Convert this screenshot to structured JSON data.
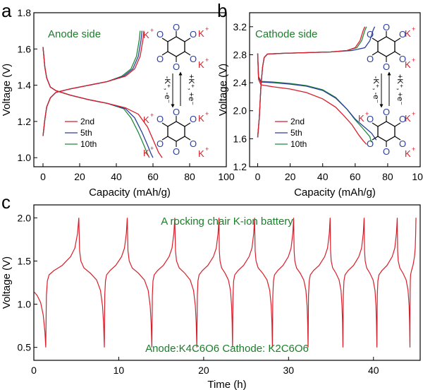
{
  "colors": {
    "red": "#d81e2a",
    "blue": "#2b3f9a",
    "green": "#1f8a3a",
    "annotation": "#1c7d2a",
    "k_label": "#d81e2a",
    "o_label": "#2b3f9a"
  },
  "panels": {
    "a": {
      "letter": "a",
      "annotation": "Anode side",
      "reaction": {
        "top_label": "+K⁺, +e⁻",
        "bottom_label": "-K⁺, -e⁻",
        "atoms": {
          "k": "K",
          "k_plus": "+",
          "oxygen": "O",
          "minus": "-"
        }
      }
    },
    "b": {
      "letter": "b",
      "annotation": "Cathode side",
      "reaction": {
        "top_label": "+K⁺, +e⁻",
        "bottom_label": "-K⁺, -e⁻",
        "atoms": {
          "k": "K",
          "k_plus": "+",
          "oxygen": "O",
          "minus": "-"
        }
      }
    },
    "c": {
      "letter": "c",
      "annotation_top": "A rocking chair K-ion battery",
      "annotation_bottom": "Anode:K4C6O6 Cathode: K2C6O6"
    }
  },
  "chart_data": [
    {
      "type": "line",
      "panel": "a",
      "xlabel": "Capacity (mAh/g)",
      "ylabel": "Voltage (V)",
      "xlim": [
        -5,
        100
      ],
      "ylim": [
        0.95,
        1.8
      ],
      "xticks": [
        "0",
        "20",
        "40",
        "60",
        "80",
        "100"
      ],
      "yticks": [
        "1.0",
        "1.2",
        "1.4",
        "1.6",
        "1.8"
      ],
      "legend_position": "bottom-left",
      "series": [
        {
          "name": "2nd",
          "color": "red",
          "discharge": [
            [
              0,
              1.61
            ],
            [
              1,
              1.5
            ],
            [
              2,
              1.44
            ],
            [
              4,
              1.39
            ],
            [
              7,
              1.37
            ],
            [
              15,
              1.345
            ],
            [
              25,
              1.32
            ],
            [
              35,
              1.3
            ],
            [
              45,
              1.275
            ],
            [
              52,
              1.24
            ],
            [
              57,
              1.17
            ],
            [
              60,
              1.1
            ],
            [
              63,
              1.03
            ],
            [
              65,
              1.0
            ]
          ],
          "charge": [
            [
              0,
              1.12
            ],
            [
              1,
              1.21
            ],
            [
              2,
              1.28
            ],
            [
              4,
              1.33
            ],
            [
              7,
              1.36
            ],
            [
              15,
              1.38
            ],
            [
              25,
              1.4
            ],
            [
              35,
              1.42
            ],
            [
              45,
              1.45
            ],
            [
              50,
              1.49
            ],
            [
              53,
              1.56
            ],
            [
              54.5,
              1.65
            ],
            [
              55,
              1.7
            ]
          ]
        },
        {
          "name": "5th",
          "color": "blue",
          "discharge": [
            [
              0,
              1.61
            ],
            [
              1,
              1.5
            ],
            [
              2,
              1.44
            ],
            [
              4,
              1.39
            ],
            [
              7,
              1.37
            ],
            [
              15,
              1.345
            ],
            [
              25,
              1.32
            ],
            [
              35,
              1.3
            ],
            [
              45,
              1.27
            ],
            [
              50,
              1.22
            ],
            [
              54,
              1.14
            ],
            [
              57,
              1.07
            ],
            [
              59,
              1.02
            ],
            [
              60,
              1.0
            ]
          ],
          "charge": [
            [
              0,
              1.12
            ],
            [
              1,
              1.21
            ],
            [
              2,
              1.28
            ],
            [
              4,
              1.33
            ],
            [
              7,
              1.36
            ],
            [
              15,
              1.38
            ],
            [
              25,
              1.4
            ],
            [
              35,
              1.42
            ],
            [
              44,
              1.45
            ],
            [
              49,
              1.49
            ],
            [
              52,
              1.56
            ],
            [
              53.5,
              1.65
            ],
            [
              54,
              1.7
            ]
          ]
        },
        {
          "name": "10th",
          "color": "green",
          "discharge": [
            [
              0,
              1.61
            ],
            [
              1,
              1.5
            ],
            [
              2,
              1.44
            ],
            [
              4,
              1.39
            ],
            [
              7,
              1.37
            ],
            [
              15,
              1.345
            ],
            [
              25,
              1.32
            ],
            [
              35,
              1.3
            ],
            [
              44,
              1.27
            ],
            [
              48,
              1.22
            ],
            [
              52,
              1.14
            ],
            [
              55,
              1.07
            ],
            [
              57,
              1.02
            ],
            [
              58,
              1.0
            ]
          ],
          "charge": [
            [
              0,
              1.12
            ],
            [
              1,
              1.21
            ],
            [
              2,
              1.28
            ],
            [
              4,
              1.33
            ],
            [
              7,
              1.36
            ],
            [
              15,
              1.38
            ],
            [
              25,
              1.4
            ],
            [
              35,
              1.42
            ],
            [
              43,
              1.45
            ],
            [
              48,
              1.49
            ],
            [
              51,
              1.56
            ],
            [
              52.5,
              1.65
            ],
            [
              53,
              1.7
            ]
          ]
        }
      ]
    },
    {
      "type": "line",
      "panel": "b",
      "xlabel": "Capacity (mAh/g)",
      "ylabel": "Voltage (V)",
      "xlim": [
        -5,
        100
      ],
      "ylim": [
        1.2,
        3.4
      ],
      "xticks": [
        "0",
        "20",
        "40",
        "60",
        "80",
        "100"
      ],
      "yticks": [
        "1.2",
        "1.6",
        "2.0",
        "2.4",
        "2.8",
        "3.2"
      ],
      "legend_position": "bottom-center",
      "series": [
        {
          "name": "2nd",
          "color": "red",
          "discharge": [
            [
              0,
              2.82
            ],
            [
              0.5,
              2.45
            ],
            [
              2,
              2.37
            ],
            [
              10,
              2.34
            ],
            [
              20,
              2.31
            ],
            [
              30,
              2.26
            ],
            [
              40,
              2.17
            ],
            [
              48,
              2.05
            ],
            [
              53,
              1.93
            ],
            [
              58,
              1.8
            ],
            [
              62,
              1.66
            ],
            [
              65,
              1.57
            ],
            [
              67,
              1.52
            ]
          ],
          "charge": [
            [
              0,
              1.62
            ],
            [
              1,
              1.9
            ],
            [
              2,
              2.35
            ],
            [
              3,
              2.62
            ],
            [
              4,
              2.76
            ],
            [
              6,
              2.81
            ],
            [
              15,
              2.82
            ],
            [
              30,
              2.83
            ],
            [
              45,
              2.84
            ],
            [
              55,
              2.86
            ],
            [
              60,
              2.9
            ],
            [
              63,
              3.0
            ],
            [
              65,
              3.15
            ],
            [
              66,
              3.2
            ]
          ]
        },
        {
          "name": "5th",
          "color": "blue",
          "discharge": [
            [
              0,
              2.82
            ],
            [
              0.5,
              2.48
            ],
            [
              2,
              2.41
            ],
            [
              10,
              2.4
            ],
            [
              20,
              2.38
            ],
            [
              30,
              2.35
            ],
            [
              40,
              2.29
            ],
            [
              48,
              2.18
            ],
            [
              55,
              2.02
            ],
            [
              60,
              1.88
            ],
            [
              65,
              1.78
            ],
            [
              70,
              1.68
            ],
            [
              73,
              1.58
            ]
          ],
          "charge": [
            [
              0,
              1.62
            ],
            [
              1,
              1.9
            ],
            [
              2,
              2.35
            ],
            [
              3,
              2.62
            ],
            [
              4,
              2.76
            ],
            [
              6,
              2.81
            ],
            [
              15,
              2.82
            ],
            [
              30,
              2.83
            ],
            [
              45,
              2.84
            ],
            [
              58,
              2.86
            ],
            [
              66,
              2.9
            ],
            [
              69,
              3.0
            ],
            [
              71,
              3.15
            ],
            [
              72,
              3.2
            ]
          ]
        },
        {
          "name": "10th",
          "color": "green",
          "discharge": [
            [
              0,
              2.82
            ],
            [
              0.5,
              2.49
            ],
            [
              2,
              2.42
            ],
            [
              10,
              2.41
            ],
            [
              20,
              2.39
            ],
            [
              30,
              2.36
            ],
            [
              40,
              2.3
            ],
            [
              48,
              2.19
            ],
            [
              55,
              2.02
            ],
            [
              60,
              1.87
            ],
            [
              65,
              1.74
            ],
            [
              69,
              1.63
            ],
            [
              70,
              1.55
            ]
          ],
          "charge": [
            [
              0,
              1.62
            ],
            [
              1,
              1.9
            ],
            [
              2,
              2.35
            ],
            [
              3,
              2.62
            ],
            [
              4,
              2.76
            ],
            [
              6,
              2.81
            ],
            [
              15,
              2.82
            ],
            [
              30,
              2.83
            ],
            [
              45,
              2.84
            ],
            [
              55,
              2.86
            ],
            [
              61,
              2.9
            ],
            [
              64,
              3.0
            ],
            [
              66,
              3.15
            ],
            [
              67,
              3.2
            ]
          ]
        }
      ]
    },
    {
      "type": "line",
      "panel": "c",
      "xlabel": "Time (h)",
      "ylabel": "Voltage (V)",
      "xlim": [
        0,
        45.5
      ],
      "ylim": [
        0.35,
        2.15
      ],
      "xticks": [
        "0",
        "10",
        "20",
        "30",
        "40"
      ],
      "yticks": [
        "0.5",
        "1.0",
        "1.5",
        "2.0"
      ],
      "cycle_turning_points_h": [
        1.4,
        5.3,
        8.3,
        11.0,
        13.9,
        16.6,
        19.2,
        21.8,
        23.4,
        26.0,
        28.1,
        30.6,
        32.3,
        34.9,
        36.4,
        38.9,
        40.4,
        42.8,
        44.3,
        45.0
      ],
      "voltage_range_V": [
        0.5,
        2.0
      ]
    }
  ]
}
